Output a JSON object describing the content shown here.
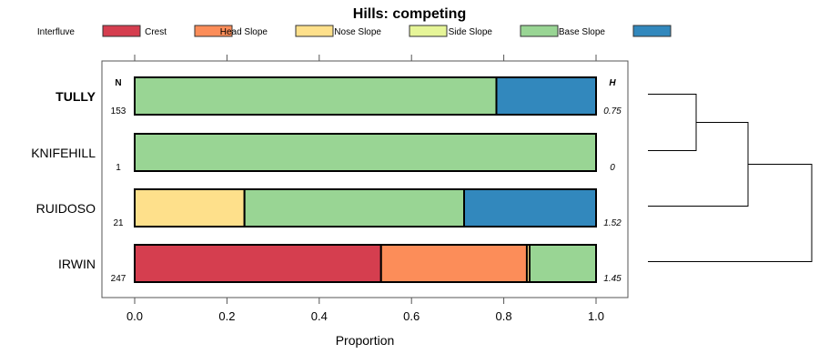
{
  "chart_data": {
    "type": "bar",
    "orientation": "horizontal-stacked",
    "title": "Hills: competing",
    "xlabel": "Proportion",
    "xlim": [
      0,
      1
    ],
    "xticks": [
      "0.0",
      "0.2",
      "0.4",
      "0.6",
      "0.8",
      "1.0"
    ],
    "legend_position": "top",
    "legend": [
      {
        "name": "Interfluve",
        "color": "#D53E4F"
      },
      {
        "name": "Crest",
        "color": "#FC8D59"
      },
      {
        "name": "Head Slope",
        "color": "#FEE08B"
      },
      {
        "name": "Nose Slope",
        "color": "#E6F598"
      },
      {
        "name": "Side Slope",
        "color": "#99D594"
      },
      {
        "name": "Base Slope",
        "color": "#3288BD"
      }
    ],
    "n_header": "N",
    "h_header": "H",
    "categories": [
      {
        "name": "TULLY",
        "bold": true,
        "n": "153",
        "h": "0.75",
        "values": [
          0,
          0,
          0,
          0,
          0.784,
          0.216
        ]
      },
      {
        "name": "KNIFEHILL",
        "bold": false,
        "n": "1",
        "h": "0",
        "values": [
          0,
          0,
          0,
          0,
          1.0,
          0
        ]
      },
      {
        "name": "RUIDOSO",
        "bold": false,
        "n": "21",
        "h": "1.52",
        "values": [
          0,
          0,
          0.238,
          0,
          0.476,
          0.286
        ]
      },
      {
        "name": "IRWIN",
        "bold": false,
        "n": "247",
        "h": "1.45",
        "values": [
          0.534,
          0.316,
          0.006,
          0,
          0.144,
          0
        ]
      }
    ],
    "dendrogram": {
      "merges": [
        [
          "TULLY",
          "KNIFEHILL"
        ],
        [
          "TULLY+KNIFEHILL",
          "RUIDOSO"
        ],
        [
          "TULLY+KNIFEHILL+RUIDOSO",
          "IRWIN"
        ]
      ]
    }
  }
}
